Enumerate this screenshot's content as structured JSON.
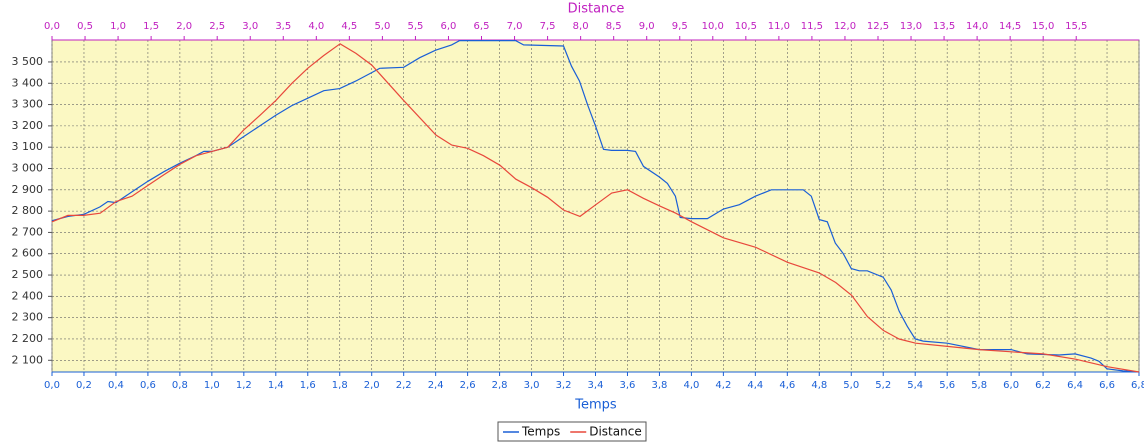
{
  "chart_data": {
    "type": "line",
    "xlabel": "Temps",
    "x2label": "Distance",
    "xlim": [
      0,
      6.8
    ],
    "x2lim": [
      0,
      16.45
    ],
    "ylim": [
      2045,
      3603
    ],
    "grid": true,
    "legend": "bottom",
    "xticks": [
      {
        "value": 0,
        "label": "0,0"
      },
      {
        "value": 0.2,
        "label": "0,2"
      },
      {
        "value": 0.4,
        "label": "0,4"
      },
      {
        "value": 0.6,
        "label": "0,6"
      },
      {
        "value": 0.8,
        "label": "0,8"
      },
      {
        "value": 1.0,
        "label": "1,0"
      },
      {
        "value": 1.2,
        "label": "1,2"
      },
      {
        "value": 1.4,
        "label": "1,4"
      },
      {
        "value": 1.6,
        "label": "1,6"
      },
      {
        "value": 1.8,
        "label": "1,8"
      },
      {
        "value": 2.0,
        "label": "2,0"
      },
      {
        "value": 2.2,
        "label": "2,2"
      },
      {
        "value": 2.4,
        "label": "2,4"
      },
      {
        "value": 2.6,
        "label": "2,6"
      },
      {
        "value": 2.8,
        "label": "2,8"
      },
      {
        "value": 3.0,
        "label": "3,0"
      },
      {
        "value": 3.2,
        "label": "3,2"
      },
      {
        "value": 3.4,
        "label": "3,4"
      },
      {
        "value": 3.6,
        "label": "3,6"
      },
      {
        "value": 3.8,
        "label": "3,8"
      },
      {
        "value": 4.0,
        "label": "4,0"
      },
      {
        "value": 4.2,
        "label": "4,2"
      },
      {
        "value": 4.4,
        "label": "4,4"
      },
      {
        "value": 4.6,
        "label": "4,6"
      },
      {
        "value": 4.8,
        "label": "4,8"
      },
      {
        "value": 5.0,
        "label": "5,0"
      },
      {
        "value": 5.2,
        "label": "5,2"
      },
      {
        "value": 5.4,
        "label": "5,4"
      },
      {
        "value": 5.6,
        "label": "5,6"
      },
      {
        "value": 5.8,
        "label": "5,8"
      },
      {
        "value": 6.0,
        "label": "6,0"
      },
      {
        "value": 6.2,
        "label": "6,2"
      },
      {
        "value": 6.4,
        "label": "6,4"
      },
      {
        "value": 6.6,
        "label": "6,6"
      },
      {
        "value": 6.8,
        "label": "6,8"
      }
    ],
    "x2ticks": [
      {
        "value": 0,
        "label": "0,0"
      },
      {
        "value": 0.5,
        "label": "0,5"
      },
      {
        "value": 1.0,
        "label": "1,0"
      },
      {
        "value": 1.5,
        "label": "1,5"
      },
      {
        "value": 2.0,
        "label": "2,0"
      },
      {
        "value": 2.5,
        "label": "2,5"
      },
      {
        "value": 3.0,
        "label": "3,0"
      },
      {
        "value": 3.5,
        "label": "3,5"
      },
      {
        "value": 4.0,
        "label": "4,0"
      },
      {
        "value": 4.5,
        "label": "4,5"
      },
      {
        "value": 5.0,
        "label": "5,0"
      },
      {
        "value": 5.5,
        "label": "5,5"
      },
      {
        "value": 6.0,
        "label": "6,0"
      },
      {
        "value": 6.5,
        "label": "6,5"
      },
      {
        "value": 7.0,
        "label": "7,0"
      },
      {
        "value": 7.5,
        "label": "7,5"
      },
      {
        "value": 8.0,
        "label": "8,0"
      },
      {
        "value": 8.5,
        "label": "8,5"
      },
      {
        "value": 9.0,
        "label": "9,0"
      },
      {
        "value": 9.5,
        "label": "9,5"
      },
      {
        "value": 10.0,
        "label": "10,0"
      },
      {
        "value": 10.5,
        "label": "10,5"
      },
      {
        "value": 11.0,
        "label": "11,0"
      },
      {
        "value": 11.5,
        "label": "11,5"
      },
      {
        "value": 12.0,
        "label": "12,0"
      },
      {
        "value": 12.5,
        "label": "12,5"
      },
      {
        "value": 13.0,
        "label": "13,0"
      },
      {
        "value": 13.5,
        "label": "13,5"
      },
      {
        "value": 14.0,
        "label": "14,0"
      },
      {
        "value": 14.5,
        "label": "14,5"
      },
      {
        "value": 15.0,
        "label": "15,0"
      },
      {
        "value": 15.5,
        "label": "15,5"
      }
    ],
    "yticks": [
      {
        "value": 2100,
        "label": "2 100"
      },
      {
        "value": 2200,
        "label": "2 200"
      },
      {
        "value": 2300,
        "label": "2 300"
      },
      {
        "value": 2400,
        "label": "2 400"
      },
      {
        "value": 2500,
        "label": "2 500"
      },
      {
        "value": 2600,
        "label": "2 600"
      },
      {
        "value": 2700,
        "label": "2 700"
      },
      {
        "value": 2800,
        "label": "2 800"
      },
      {
        "value": 2900,
        "label": "2 900"
      },
      {
        "value": 3000,
        "label": "3 000"
      },
      {
        "value": 3100,
        "label": "3 100"
      },
      {
        "value": 3200,
        "label": "3 200"
      },
      {
        "value": 3300,
        "label": "3 300"
      },
      {
        "value": 3400,
        "label": "3 400"
      },
      {
        "value": 3500,
        "label": "3 500"
      }
    ],
    "series": [
      {
        "name": "Temps",
        "color": "#1a5fd6",
        "axis": "x",
        "x": [
          0,
          0.1,
          0.2,
          0.3,
          0.35,
          0.4,
          0.5,
          0.6,
          0.7,
          0.8,
          0.9,
          0.95,
          1.0,
          1.1,
          1.2,
          1.3,
          1.4,
          1.5,
          1.6,
          1.7,
          1.8,
          1.9,
          2.0,
          2.05,
          2.2,
          2.3,
          2.4,
          2.5,
          2.55,
          2.9,
          2.95,
          3.2,
          3.25,
          3.3,
          3.35,
          3.4,
          3.45,
          3.5,
          3.6,
          3.65,
          3.7,
          3.8,
          3.85,
          3.9,
          3.93,
          4.0,
          4.1,
          4.2,
          4.3,
          4.4,
          4.5,
          4.7,
          4.75,
          4.8,
          4.85,
          4.9,
          4.95,
          5.0,
          5.05,
          5.1,
          5.2,
          5.25,
          5.3,
          5.35,
          5.4,
          5.45,
          5.6,
          5.8,
          6.0,
          6.1,
          6.3,
          6.4,
          6.5,
          6.55,
          6.6,
          6.7,
          6.8
        ],
        "values": [
          2755,
          2775,
          2785,
          2820,
          2845,
          2840,
          2890,
          2940,
          2985,
          3025,
          3060,
          3080,
          3080,
          3100,
          3150,
          3200,
          3250,
          3295,
          3330,
          3365,
          3375,
          3410,
          3450,
          3470,
          3475,
          3520,
          3555,
          3580,
          3600,
          3600,
          3580,
          3575,
          3480,
          3410,
          3300,
          3200,
          3090,
          3085,
          3085,
          3080,
          3010,
          2960,
          2930,
          2870,
          2770,
          2765,
          2765,
          2810,
          2830,
          2870,
          2900,
          2900,
          2870,
          2760,
          2750,
          2650,
          2600,
          2530,
          2520,
          2520,
          2490,
          2430,
          2330,
          2260,
          2200,
          2190,
          2180,
          2150,
          2150,
          2130,
          2125,
          2130,
          2110,
          2095,
          2060,
          2050,
          2045
        ]
      },
      {
        "name": "Distance",
        "color": "#e8483c",
        "axis": "x2",
        "x": [
          0,
          0.24,
          0.48,
          0.73,
          0.97,
          1.21,
          1.45,
          1.69,
          1.94,
          2.18,
          2.42,
          2.66,
          2.9,
          3.15,
          3.39,
          3.63,
          3.87,
          4.11,
          4.36,
          4.6,
          4.84,
          5.32,
          5.81,
          6.05,
          6.29,
          6.53,
          6.78,
          7.02,
          7.26,
          7.5,
          7.74,
          7.99,
          8.23,
          8.47,
          8.71,
          8.95,
          9.19,
          9.44,
          9.68,
          10.16,
          10.65,
          11.13,
          11.61,
          11.86,
          12.1,
          12.34,
          12.58,
          12.82,
          13.07,
          13.55,
          14.03,
          14.52,
          15.0,
          15.49,
          15.97,
          16.45
        ],
        "values": [
          2750,
          2780,
          2780,
          2790,
          2845,
          2870,
          2920,
          2970,
          3020,
          3060,
          3080,
          3100,
          3180,
          3250,
          3320,
          3400,
          3470,
          3530,
          3585,
          3540,
          3485,
          3320,
          3157,
          3110,
          3095,
          3060,
          3015,
          2950,
          2910,
          2865,
          2805,
          2775,
          2830,
          2885,
          2900,
          2860,
          2825,
          2790,
          2750,
          2675,
          2630,
          2560,
          2510,
          2465,
          2405,
          2305,
          2240,
          2200,
          2180,
          2165,
          2150,
          2140,
          2130,
          2105,
          2070,
          2045
        ]
      }
    ]
  }
}
